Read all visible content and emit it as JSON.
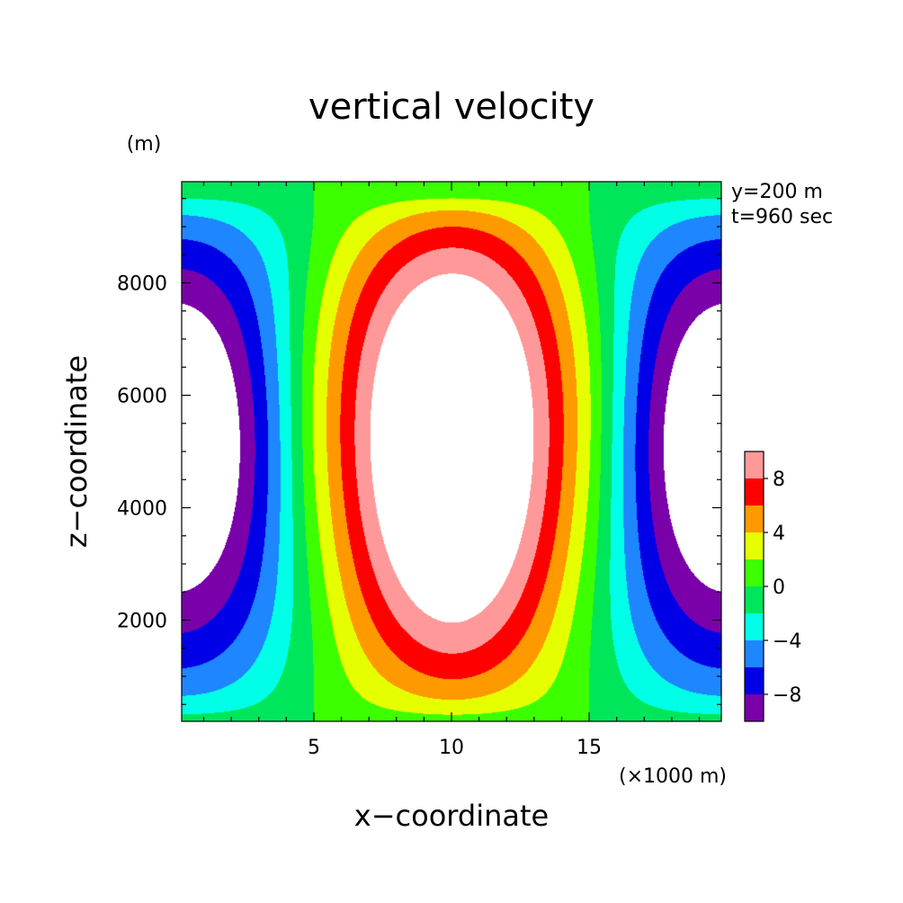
{
  "chart_data": {
    "type": "heatmap",
    "title": "vertical velocity",
    "xlabel": "x−coordinate",
    "ylabel": "z−coordinate",
    "x_unit": "(×1000 m)",
    "y_unit": "(m)",
    "annotations": [
      "y=200 m",
      "t=960 sec"
    ],
    "xlim": [
      0.2,
      19.8
    ],
    "ylim": [
      200,
      9800
    ],
    "x_ticks": [
      5,
      10,
      15
    ],
    "x_tick_labels": [
      "5",
      "10",
      "15"
    ],
    "y_ticks": [
      2000,
      4000,
      6000,
      8000
    ],
    "y_tick_labels": [
      "2000",
      "4000",
      "6000",
      "8000"
    ],
    "grid": false,
    "field": {
      "description": "updraft core near x=10 (x1000 m), z≈5000 m; downdrafts at x=0 and x=20",
      "max_approx": 12,
      "min_approx": -12
    },
    "colorbar": {
      "levels": [
        -10,
        -8,
        -6,
        -4,
        -2,
        0,
        2,
        4,
        6,
        8,
        10
      ],
      "tick_labels": [
        "−8",
        "−4",
        "0",
        "4",
        "8"
      ],
      "tick_values": [
        -8,
        -4,
        0,
        4,
        8
      ],
      "colors": [
        "#7a00aa",
        "#0000e6",
        "#1e86ff",
        "#00ffe6",
        "#00e65a",
        "#3cff00",
        "#e6ff00",
        "#ff9900",
        "#ff0000",
        "#ff9999"
      ],
      "over_color": "#ffffff",
      "under_color": "#ffffff"
    }
  }
}
